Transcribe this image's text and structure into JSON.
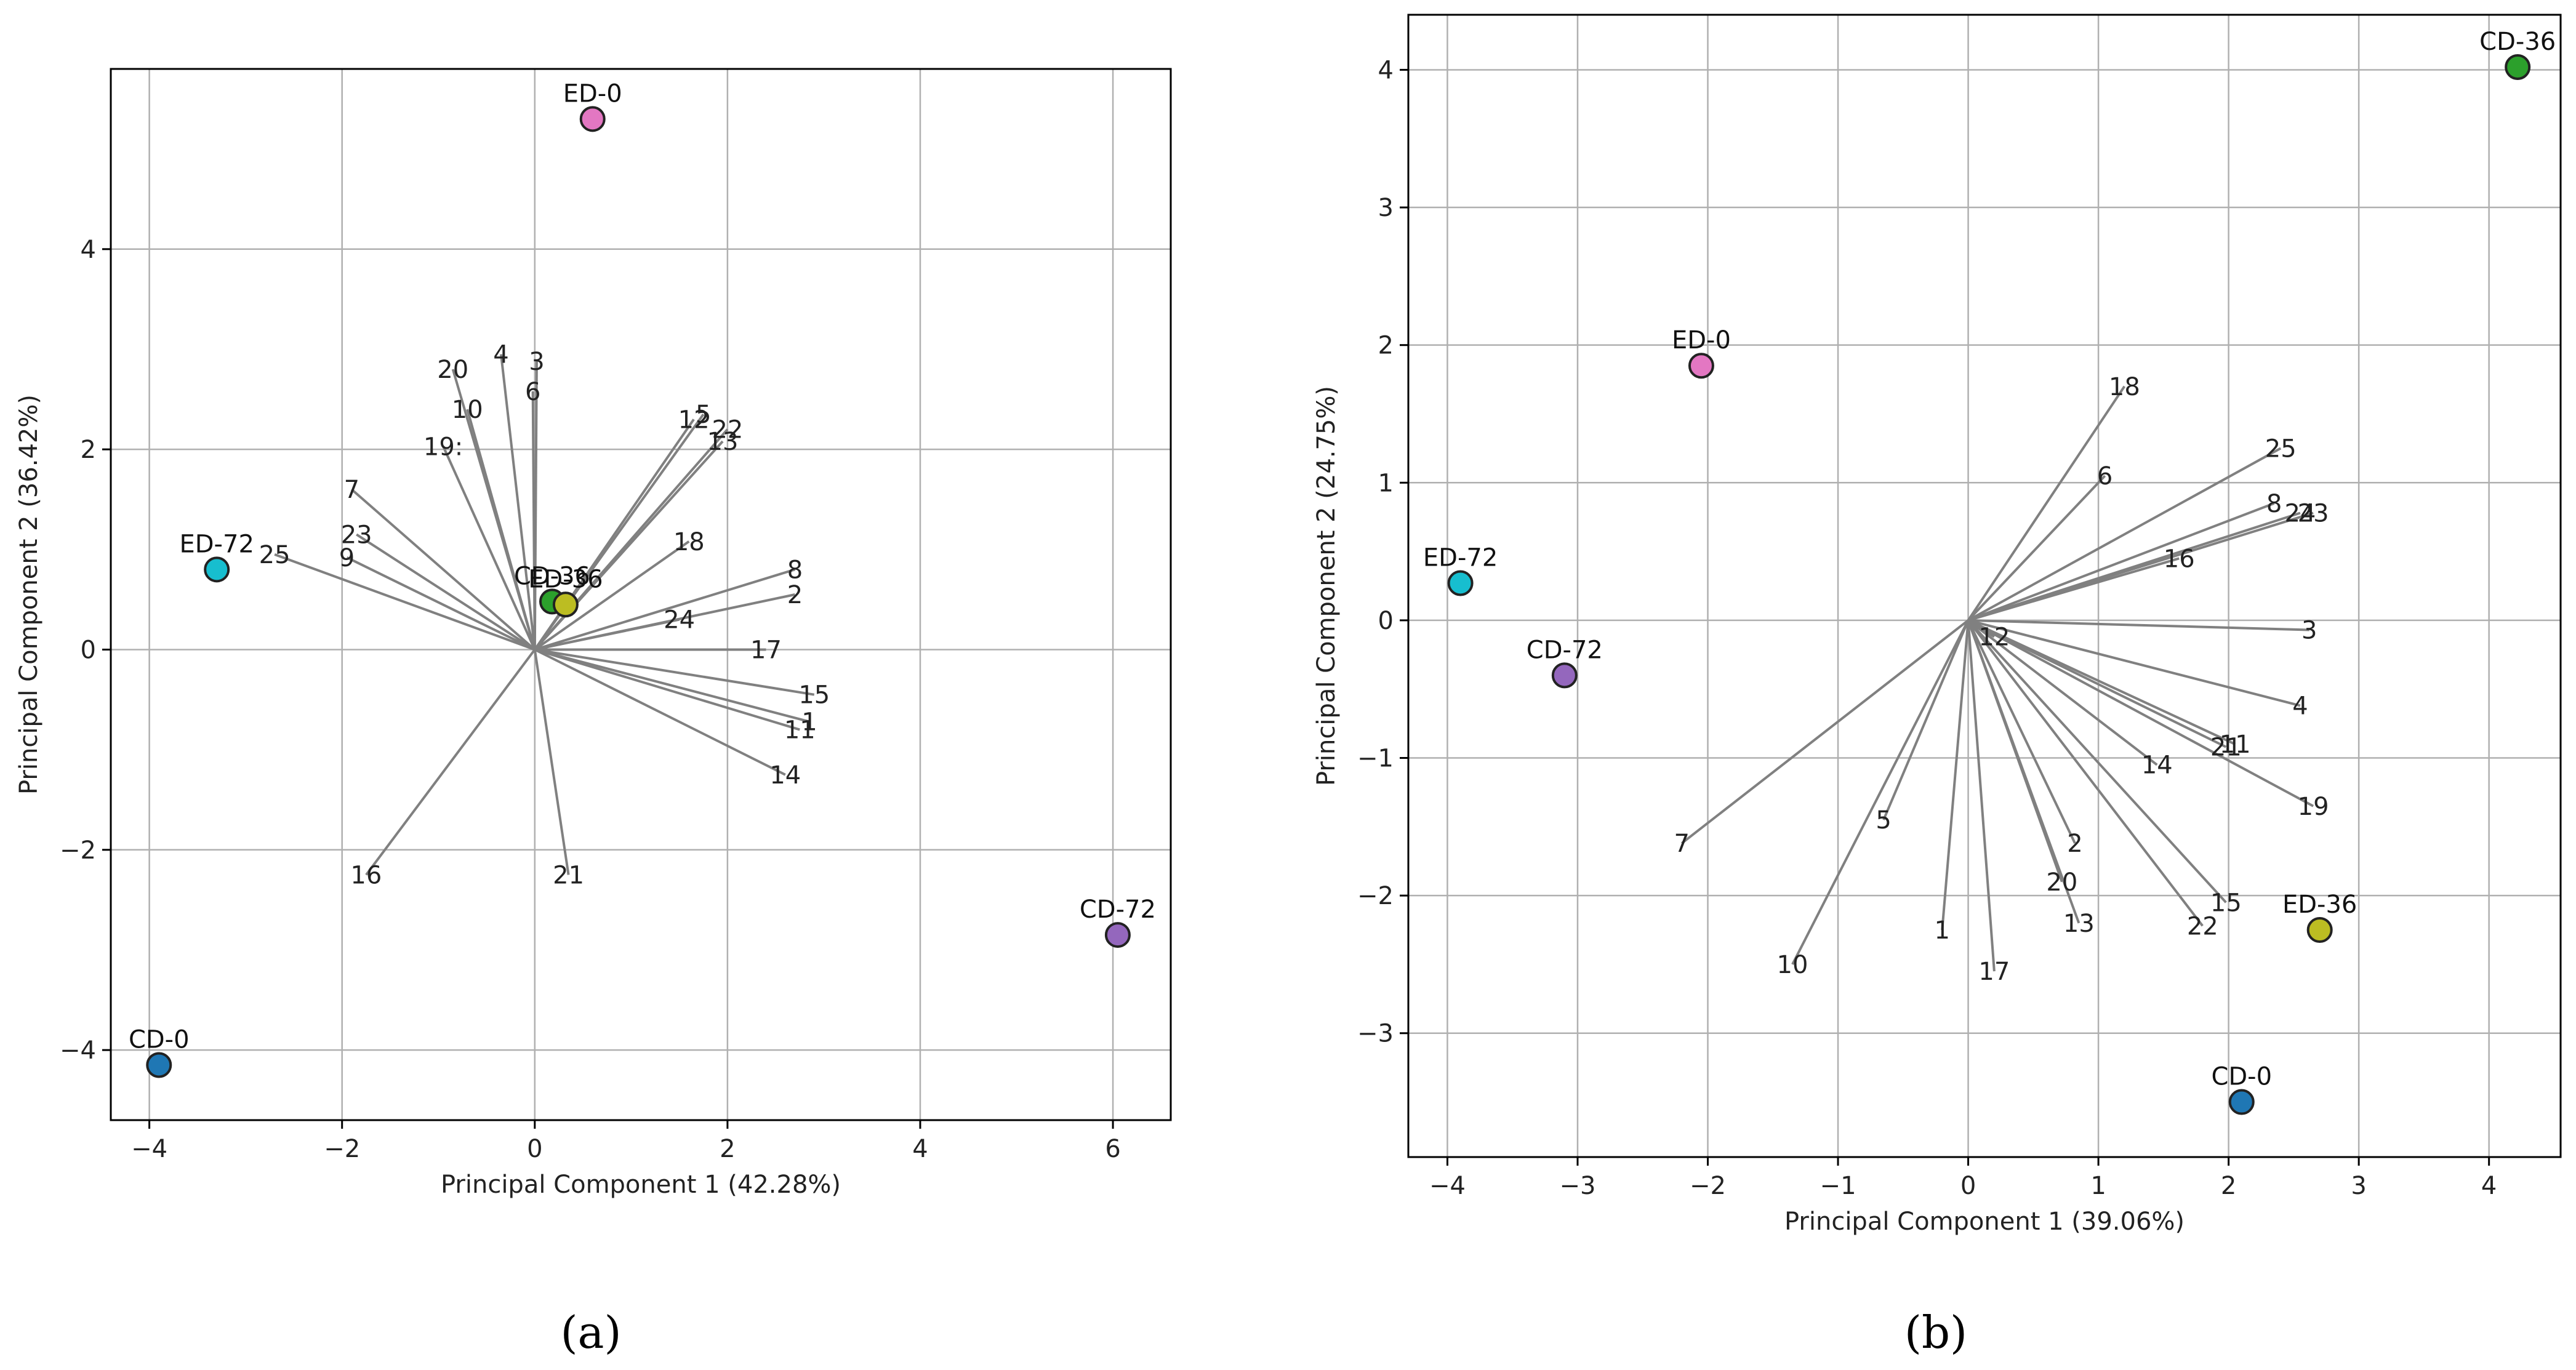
{
  "chart_data": [
    {
      "type": "scatter",
      "panel_label": "(a)",
      "xlabel": "Principal Component 1 (42.28%)",
      "ylabel": "Principal Component 2 (36.42%)",
      "xlim": [
        -4.4,
        6.6
      ],
      "ylim": [
        -4.7,
        5.8
      ],
      "xticks": [
        -4,
        -2,
        0,
        2,
        4,
        6
      ],
      "yticks": [
        -4,
        -2,
        0,
        2,
        4
      ],
      "grid": true,
      "points": [
        {
          "label": "ED-0",
          "x": 0.6,
          "y": 5.3,
          "color": "#e377c2"
        },
        {
          "label": "ED-72",
          "x": -3.3,
          "y": 0.8,
          "color": "#17becf"
        },
        {
          "label": "CD-36",
          "x": 0.18,
          "y": 0.48,
          "color": "#2ca02c"
        },
        {
          "label": "ED-36",
          "x": 0.32,
          "y": 0.45,
          "color": "#bcbd22"
        },
        {
          "label": "CD-72",
          "x": 6.05,
          "y": -2.85,
          "color": "#9467bd"
        },
        {
          "label": "CD-0",
          "x": -3.9,
          "y": -4.15,
          "color": "#1f77b4"
        }
      ],
      "vectors": [
        {
          "label": "1",
          "x": 2.85,
          "y": -0.72
        },
        {
          "label": "2",
          "x": 2.7,
          "y": 0.55
        },
        {
          "label": "3",
          "x": 0.02,
          "y": 2.88
        },
        {
          "label": "4",
          "x": -0.35,
          "y": 2.95
        },
        {
          "label": "5",
          "x": 1.75,
          "y": 2.35
        },
        {
          "label": "6",
          "x": -0.02,
          "y": 2.58
        },
        {
          "label": "7",
          "x": -1.9,
          "y": 1.6
        },
        {
          "label": "8",
          "x": 2.7,
          "y": 0.8
        },
        {
          "label": "9",
          "x": -1.95,
          "y": 0.92
        },
        {
          "label": "10",
          "x": -0.7,
          "y": 2.4
        },
        {
          "label": "11",
          "x": 2.75,
          "y": -0.8
        },
        {
          "label": "12",
          "x": 1.65,
          "y": 2.3
        },
        {
          "label": "13",
          "x": 1.95,
          "y": 2.08
        },
        {
          "label": "14",
          "x": 2.6,
          "y": -1.25
        },
        {
          "label": "15",
          "x": 2.9,
          "y": -0.45
        },
        {
          "label": "16",
          "x": -1.75,
          "y": -2.25
        },
        {
          "label": "17",
          "x": 2.4,
          "y": 0.0
        },
        {
          "label": "18",
          "x": 1.6,
          "y": 1.08
        },
        {
          "label": "19",
          "x": -0.95,
          "y": 2.03
        },
        {
          "label": "20",
          "x": -0.85,
          "y": 2.8
        },
        {
          "label": "21",
          "x": 0.35,
          "y": -2.25
        },
        {
          "label": "22",
          "x": 2.0,
          "y": 2.2
        },
        {
          "label": "23",
          "x": -1.85,
          "y": 1.15
        },
        {
          "label": "24",
          "x": 1.5,
          "y": 0.3
        },
        {
          "label": "25",
          "x": -2.7,
          "y": 0.95
        }
      ],
      "vector_label_prints": {
        "19": "19:"
      }
    },
    {
      "type": "scatter",
      "panel_label": "(b)",
      "xlabel": "Principal Component 1 (39.06%)",
      "ylabel": "Principal Component 2 (24.75%)",
      "xlim": [
        -4.3,
        4.55
      ],
      "ylim": [
        -3.9,
        4.4
      ],
      "xticks": [
        -4,
        -3,
        -2,
        -1,
        0,
        1,
        2,
        3,
        4
      ],
      "yticks": [
        -3,
        -2,
        -1,
        0,
        1,
        2,
        3,
        4
      ],
      "grid": true,
      "points": [
        {
          "label": "CD-36",
          "x": 4.22,
          "y": 4.02,
          "color": "#2ca02c"
        },
        {
          "label": "ED-0",
          "x": -2.05,
          "y": 1.85,
          "color": "#e377c2"
        },
        {
          "label": "ED-72",
          "x": -3.9,
          "y": 0.27,
          "color": "#17becf"
        },
        {
          "label": "CD-72",
          "x": -3.1,
          "y": -0.4,
          "color": "#9467bd"
        },
        {
          "label": "ED-36",
          "x": 2.7,
          "y": -2.25,
          "color": "#bcbd22"
        },
        {
          "label": "CD-0",
          "x": 2.1,
          "y": -3.5,
          "color": "#1f77b4"
        }
      ],
      "vectors": [
        {
          "label": "1",
          "x": -0.2,
          "y": -2.25
        },
        {
          "label": "2",
          "x": 0.82,
          "y": -1.62
        },
        {
          "label": "3",
          "x": 2.62,
          "y": -0.07
        },
        {
          "label": "4",
          "x": 2.55,
          "y": -0.62
        },
        {
          "label": "5",
          "x": -0.65,
          "y": -1.45
        },
        {
          "label": "6",
          "x": 1.05,
          "y": 1.05
        },
        {
          "label": "7",
          "x": -2.2,
          "y": -1.62
        },
        {
          "label": "8",
          "x": 2.35,
          "y": 0.85
        },
        {
          "label": "10",
          "x": -1.35,
          "y": -2.5
        },
        {
          "label": "11",
          "x": 2.05,
          "y": -0.9
        },
        {
          "label": "12",
          "x": 0.2,
          "y": -0.12
        },
        {
          "label": "13",
          "x": 0.85,
          "y": -2.2
        },
        {
          "label": "14",
          "x": 1.45,
          "y": -1.05
        },
        {
          "label": "15",
          "x": 1.98,
          "y": -2.05
        },
        {
          "label": "16",
          "x": 1.62,
          "y": 0.45
        },
        {
          "label": "17",
          "x": 0.2,
          "y": -2.55
        },
        {
          "label": "18",
          "x": 1.2,
          "y": 1.7
        },
        {
          "label": "19",
          "x": 2.65,
          "y": -1.35
        },
        {
          "label": "20",
          "x": 0.72,
          "y": -1.9
        },
        {
          "label": "21",
          "x": 1.98,
          "y": -0.92
        },
        {
          "label": "22",
          "x": 1.8,
          "y": -2.22
        },
        {
          "label": "23",
          "x": 2.65,
          "y": 0.78
        },
        {
          "label": "24",
          "x": 2.55,
          "y": 0.78
        },
        {
          "label": "25",
          "x": 2.4,
          "y": 1.25
        }
      ],
      "vector_label_prints": {
        "23": "23",
        "24": "24"
      }
    }
  ]
}
